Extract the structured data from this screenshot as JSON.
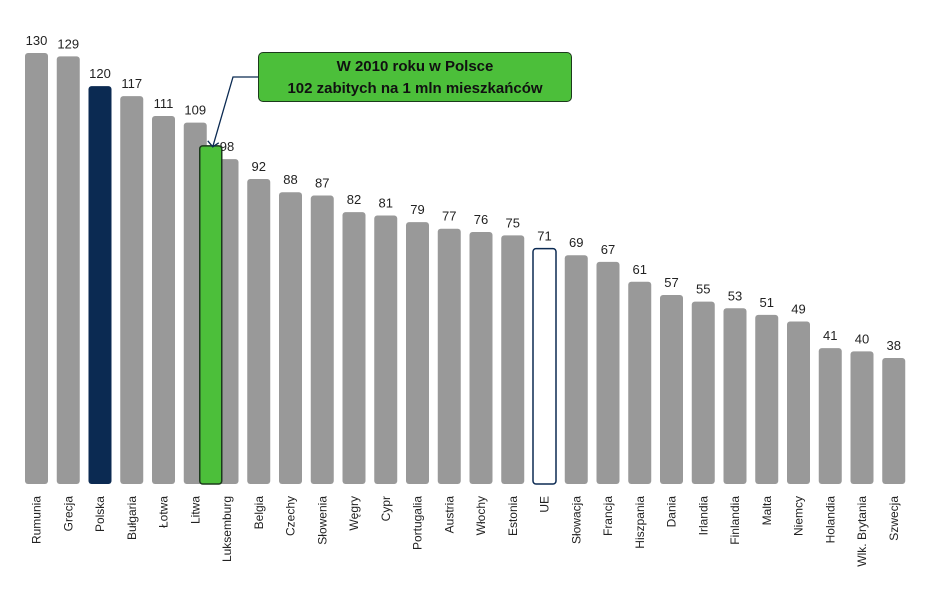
{
  "callout": {
    "line1": "W 2010 roku w Polsce",
    "line2": "102 zabitych na 1 mln mieszkańców"
  },
  "chart_data": {
    "type": "bar",
    "categories": [
      "Rumunia",
      "Grecja",
      "Polska",
      "Bułgaria",
      "Łotwa",
      "Litwa",
      "Luksemburg",
      "Belgia",
      "Czechy",
      "Słowenia",
      "Węgry",
      "Cypr",
      "Portugalia",
      "Austria",
      "Włochy",
      "Estonia",
      "UE",
      "Słowacja",
      "Francja",
      "Hiszpania",
      "Dania",
      "Irlandia",
      "Finlandia",
      "Malta",
      "Niemcy",
      "Holandia",
      "Wlk. Brytania",
      "Szwecja"
    ],
    "values": [
      130,
      129,
      120,
      117,
      111,
      109,
      98,
      92,
      88,
      87,
      82,
      81,
      79,
      77,
      76,
      75,
      71,
      69,
      67,
      61,
      57,
      55,
      53,
      51,
      49,
      41,
      40,
      38
    ],
    "highlight": {
      "value": 102,
      "position_after": "Litwa",
      "color": "#4cbf3a",
      "border": "#1c3a1c"
    },
    "colors": {
      "default": "#999999",
      "Polska": "#0b2a52",
      "UE": "#ffffff",
      "UE_border": "#0b2a52"
    },
    "ylim": [
      0,
      130
    ],
    "grid": false,
    "legend": "none"
  }
}
